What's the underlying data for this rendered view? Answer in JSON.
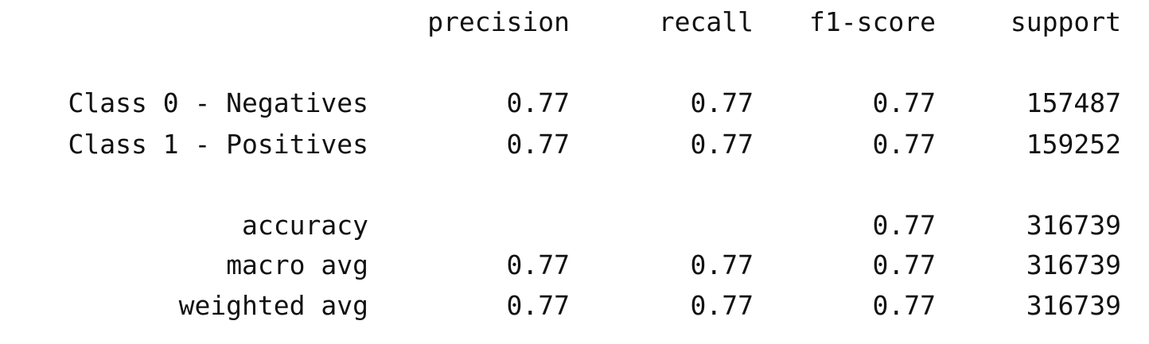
{
  "header": {
    "precision": "precision",
    "recall": "recall",
    "f1_score": "f1-score",
    "support": "support"
  },
  "rows": [
    {
      "label": "Class 0 - Negatives",
      "precision": "0.77",
      "recall": "0.77",
      "f1_score": "0.77",
      "support": "157487"
    },
    {
      "label": "Class 1 - Positives",
      "precision": "0.77",
      "recall": "0.77",
      "f1_score": "0.77",
      "support": "159252"
    }
  ],
  "summary": [
    {
      "label": "accuracy",
      "precision": "",
      "recall": "",
      "f1_score": "0.77",
      "support": "316739"
    },
    {
      "label": "macro avg",
      "precision": "0.77",
      "recall": "0.77",
      "f1_score": "0.77",
      "support": "316739"
    },
    {
      "label": "weighted avg",
      "precision": "0.77",
      "recall": "0.77",
      "f1_score": "0.77",
      "support": "316739"
    }
  ]
}
